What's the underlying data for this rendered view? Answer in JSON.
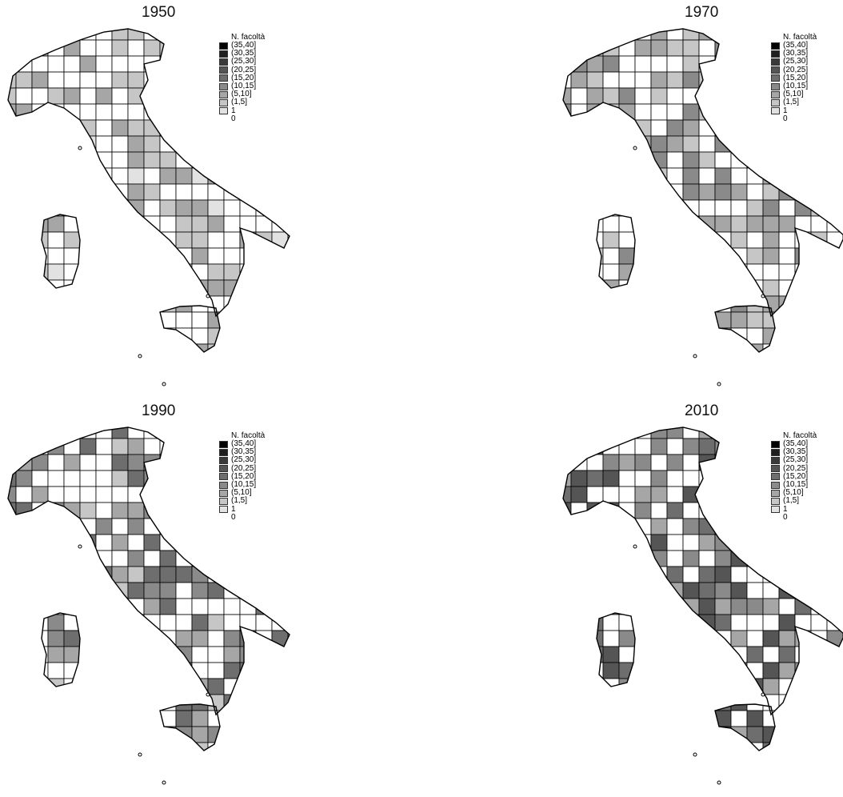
{
  "legend": {
    "title": "N. facoltà",
    "classes": [
      {
        "label": "(35,40]",
        "color": "#000000"
      },
      {
        "label": "(30,35]",
        "color": "#1f1f1f"
      },
      {
        "label": "(25,30]",
        "color": "#3a3a3a"
      },
      {
        "label": "(20,25]",
        "color": "#555555"
      },
      {
        "label": "(15,20]",
        "color": "#6e6e6e"
      },
      {
        "label": "(10,15]",
        "color": "#8a8a8a"
      },
      {
        "label": "(5,10]",
        "color": "#a6a6a6"
      },
      {
        "label": "(1,5]",
        "color": "#c6c6c6"
      },
      {
        "label": "1",
        "color": "#e2e2e2"
      },
      {
        "label": "0",
        "color": "#ffffff"
      }
    ]
  },
  "panels": [
    {
      "year": "1950"
    },
    {
      "year": "1970"
    },
    {
      "year": "1990"
    },
    {
      "year": "2010"
    }
  ]
}
